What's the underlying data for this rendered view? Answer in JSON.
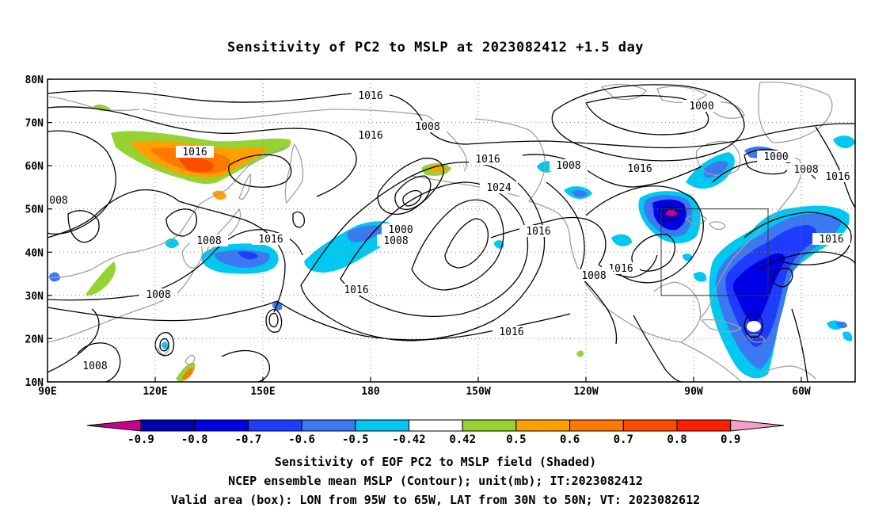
{
  "title": "Sensitivity of PC2 to MSLP at 2023082412 +1.5 day",
  "map": {
    "lat_labels": [
      "80N",
      "70N",
      "60N",
      "50N",
      "40N",
      "30N",
      "20N",
      "10N"
    ],
    "lon_labels": [
      "90E",
      "120E",
      "150E",
      "180",
      "150W",
      "120W",
      "90W",
      "60W"
    ],
    "contour_labels": [
      "1016",
      "1016",
      "1008",
      "1016",
      "1016",
      "1016",
      "1024",
      "1008",
      "1016",
      "1000",
      "1000",
      "1008",
      "1016",
      "1008",
      "1016",
      "1008",
      "1016",
      "1016",
      "1008",
      "1016",
      "1008",
      "008",
      "1016",
      "1008"
    ],
    "valid_box": {
      "lon_range": "95W-65W",
      "lat_range": "30N-50N"
    }
  },
  "colorbar": {
    "tick_labels": [
      "-0.9",
      "-0.8",
      "-0.7",
      "-0.6",
      "-0.5",
      "-0.42",
      "0.42",
      "0.5",
      "0.6",
      "0.7",
      "0.8",
      "0.9"
    ],
    "colors": {
      "lt_m09": "#c8008c",
      "m09_m08": "#0000b4",
      "m08_m07": "#0000e6",
      "m07_m06": "#1e3cff",
      "m06_m05": "#3c78f0",
      "m05_m042": "#00c8f0",
      "neutral": "#ffffff",
      "p042_p05": "#96d232",
      "p05_p06": "#ffa000",
      "p06_p07": "#ff7800",
      "p07_p08": "#ff4b00",
      "p08_p09": "#ff1e00",
      "gt_p09": "#f59ec8"
    }
  },
  "footer": {
    "line1": "Sensitivity of EOF PC2 to MSLP field (Shaded)",
    "line2": "NCEP ensemble mean MSLP (Contour); unit(mb); IT:2023082412",
    "line3": "Valid area (box): LON from 95W to 65W, LAT from 30N to 50N; VT: 2023082612"
  }
}
